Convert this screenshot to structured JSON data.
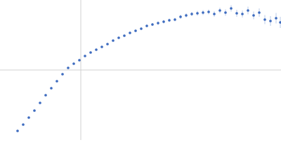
{
  "chart_data": {
    "type": "scatter",
    "color": "#3d6bbf",
    "xlim": [
      -1.15,
      2.85
    ],
    "ylim": [
      -1,
      1
    ],
    "x": [
      -0.9,
      -0.82,
      -0.74,
      -0.66,
      -0.58,
      -0.5,
      -0.42,
      -0.34,
      -0.26,
      -0.18,
      -0.1,
      -0.02,
      0.06,
      0.14,
      0.22,
      0.3,
      0.38,
      0.46,
      0.54,
      0.62,
      0.7,
      0.78,
      0.86,
      0.94,
      1.02,
      1.1,
      1.18,
      1.26,
      1.34,
      1.42,
      1.5,
      1.58,
      1.66,
      1.74,
      1.82,
      1.9,
      1.98,
      2.06,
      2.14,
      2.22,
      2.3,
      2.38,
      2.46,
      2.54,
      2.62,
      2.7,
      2.78,
      2.84
    ],
    "values": [
      -0.87,
      -0.78,
      -0.68,
      -0.58,
      -0.47,
      -0.36,
      -0.26,
      -0.16,
      -0.06,
      0.03,
      0.09,
      0.14,
      0.2,
      0.25,
      0.29,
      0.33,
      0.37,
      0.42,
      0.46,
      0.49,
      0.53,
      0.56,
      0.59,
      0.63,
      0.65,
      0.67,
      0.69,
      0.71,
      0.72,
      0.76,
      0.78,
      0.8,
      0.81,
      0.82,
      0.83,
      0.8,
      0.85,
      0.82,
      0.88,
      0.81,
      0.8,
      0.85,
      0.78,
      0.82,
      0.72,
      0.7,
      0.74,
      0.68
    ],
    "errors": [
      0.01,
      0.01,
      0.01,
      0.01,
      0.01,
      0.01,
      0.01,
      0.01,
      0.01,
      0.01,
      0.01,
      0.01,
      0.01,
      0.01,
      0.01,
      0.015,
      0.015,
      0.015,
      0.015,
      0.015,
      0.02,
      0.02,
      0.02,
      0.02,
      0.02,
      0.025,
      0.025,
      0.025,
      0.025,
      0.03,
      0.03,
      0.03,
      0.035,
      0.035,
      0.035,
      0.04,
      0.04,
      0.045,
      0.045,
      0.05,
      0.05,
      0.055,
      0.055,
      0.06,
      0.065,
      0.07,
      0.075,
      0.08
    ]
  }
}
